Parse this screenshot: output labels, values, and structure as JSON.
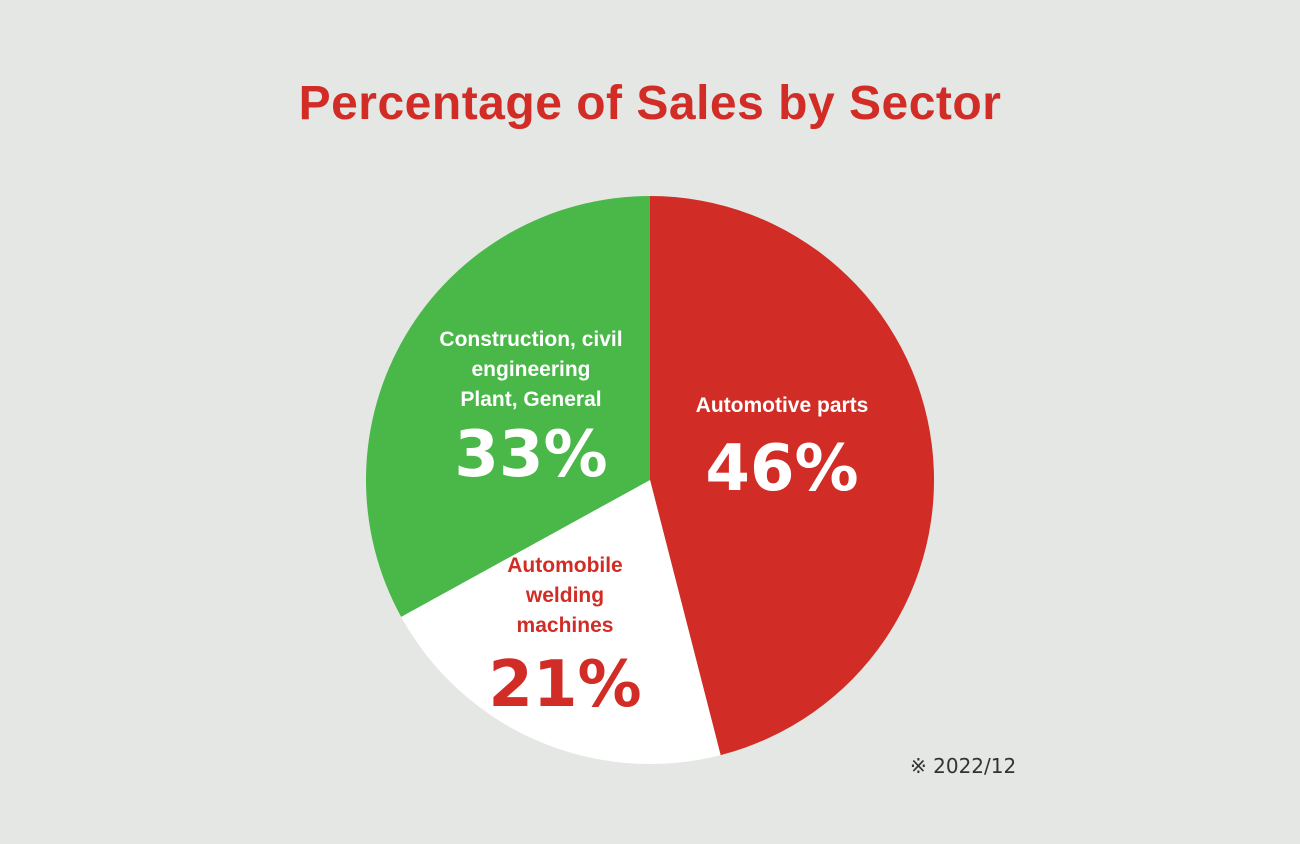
{
  "colors": {
    "background": "#e4e7e4",
    "title": "#d12d26",
    "footnote": "#333333"
  },
  "footnote": "※ 2022/12",
  "chart_data": {
    "type": "pie",
    "title": "Percentage of Sales by Sector",
    "slices": [
      {
        "label_lines": [
          "Automotive parts"
        ],
        "value": 46,
        "value_label": "46%",
        "color": "#d12d26",
        "text_color": "#ffffff"
      },
      {
        "label_lines": [
          "Automobile",
          "welding",
          "machines"
        ],
        "value": 21,
        "value_label": "21%",
        "color": "#ffffff",
        "text_color": "#d12d26"
      },
      {
        "label_lines": [
          "Construction, civil",
          "engineering",
          "Plant, General"
        ],
        "value": 33,
        "value_label": "33%",
        "color": "#4ab749",
        "text_color": "#ffffff"
      }
    ]
  }
}
